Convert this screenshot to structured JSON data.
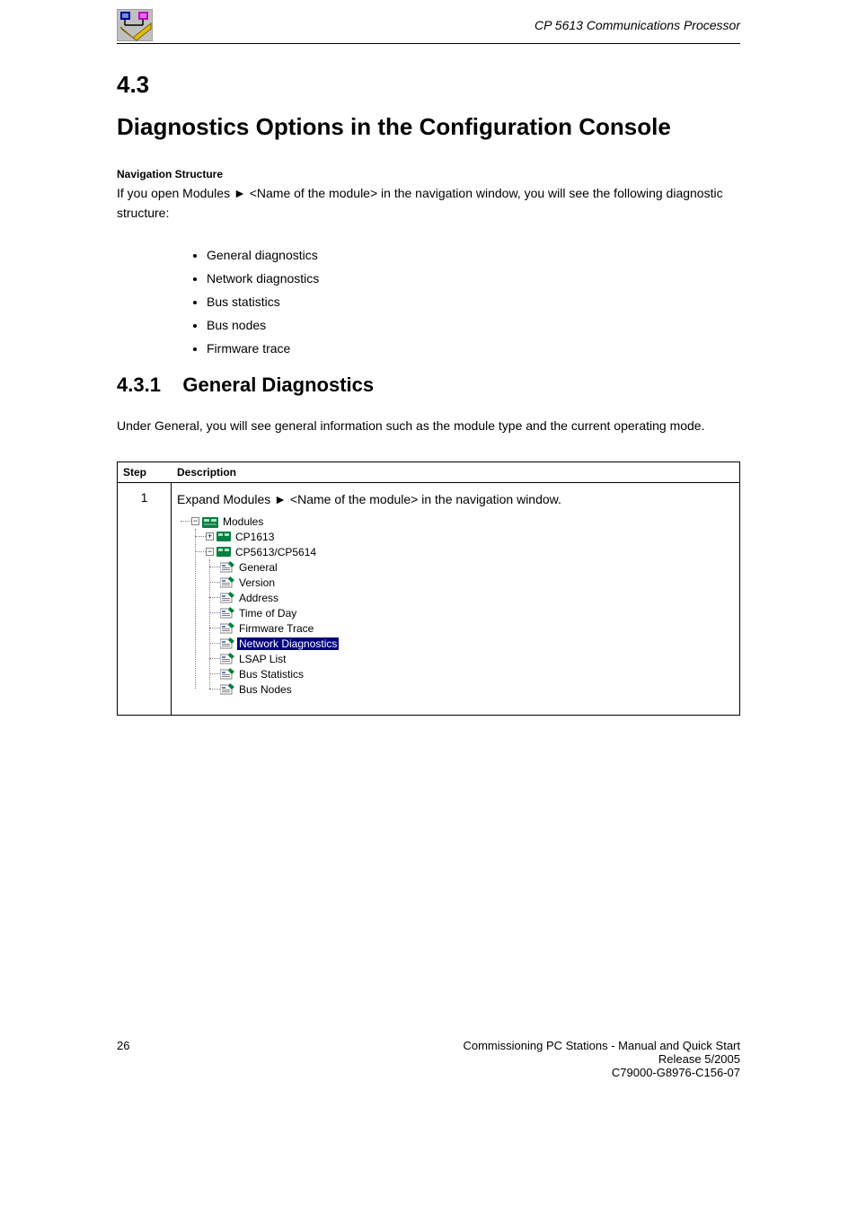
{
  "header": {
    "title": "CP 5613 Communications Processor"
  },
  "section": {
    "number": "4.3",
    "title": "Diagnostics Options in the Configuration Console"
  },
  "navigation": {
    "label": "Navigation Structure",
    "text": "If you open Modules ► <Name of the module> in the navigation window, you will see the following diagnostic structure:"
  },
  "diagnostic_items": [
    "General diagnostics",
    "Network diagnostics",
    "Bus statistics",
    "Bus nodes",
    "Firmware trace"
  ],
  "subheading_number": "4.3.1",
  "subheading_title": "General Diagnostics",
  "general_text": "Under General, you will see general information such as the module type and the current operating mode.",
  "table": {
    "col1_header": "Step",
    "col2_header": "Description",
    "step_number": "1",
    "step_text": "Expand Modules ► <Name of the module> in the navigation window."
  },
  "tree": {
    "root": "Modules",
    "module1": "CP1613",
    "module2": "CP5613/CP5614",
    "items": [
      {
        "label": "General",
        "selected": false
      },
      {
        "label": "Version",
        "selected": false
      },
      {
        "label": "Address",
        "selected": false
      },
      {
        "label": "Time of Day",
        "selected": false
      },
      {
        "label": "Firmware Trace",
        "selected": false
      },
      {
        "label": "Network Diagnostics",
        "selected": true
      },
      {
        "label": "LSAP List",
        "selected": false
      },
      {
        "label": "Bus Statistics",
        "selected": false
      },
      {
        "label": "Bus Nodes",
        "selected": false
      }
    ]
  },
  "footer": {
    "page": "26",
    "line1": "Commissioning PC Stations - Manual and Quick Start",
    "line2": "Release 5/2005",
    "line3": "C79000-G8976-C156-07"
  },
  "colors": {
    "selection_bg": "#000080",
    "tree_icon_green": "#008040",
    "tree_icon_detail": "#c0c0c0",
    "header_icon_bg": "#c0c0c0",
    "header_icon_blue": "#0000a0",
    "header_icon_magenta": "#c000c0",
    "header_icon_yellow": "#e0c000"
  }
}
